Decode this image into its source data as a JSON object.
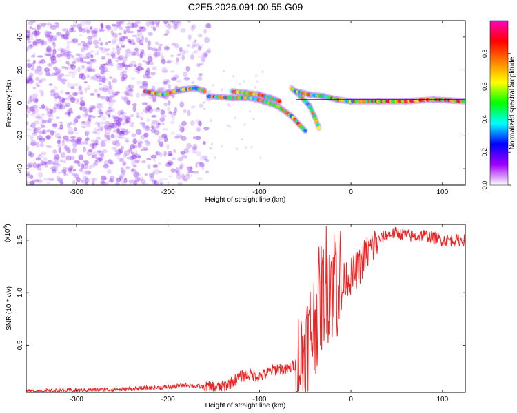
{
  "figure_title": "C2E5.2026.091.00.55.G09",
  "colorbar_label": "Normalized spectral amplitude",
  "colorbar_ticks": [
    "0.0",
    "0.2",
    "0.4",
    "0.6",
    "0.8"
  ],
  "colorbar_stops": [
    "#ffffff",
    "#a000ff",
    "#0000ff",
    "#00ffff",
    "#00ff00",
    "#ffff00",
    "#ff8000",
    "#ff0000",
    "#ff00c0"
  ],
  "chart_data": [
    {
      "type": "heatmap",
      "xlabel": "Height of straight line (km)",
      "ylabel": "Frequency (Hz)",
      "xlim": [
        -355,
        125
      ],
      "ylim": [
        -50,
        50
      ],
      "xticks": [
        -300,
        -200,
        -100,
        0,
        100
      ],
      "yticks": [
        -40,
        -20,
        0,
        20,
        40
      ],
      "xtick_labels": [
        "-300",
        "-200",
        "-100",
        "0",
        "100"
      ],
      "ytick_labels": [
        "-40",
        "-20",
        "0",
        "20",
        "40"
      ],
      "noise_region_x": [
        -355,
        -155
      ],
      "signal_tracks": [
        {
          "x": [
            -225,
            -205,
            -185,
            -170,
            -160
          ],
          "y": [
            7,
            5,
            8,
            9,
            7
          ]
        },
        {
          "x": [
            -155,
            -130,
            -110,
            -95,
            -80,
            -65,
            -50
          ],
          "y": [
            4,
            3,
            3,
            1,
            -2,
            -8,
            -17
          ]
        },
        {
          "x": [
            -130,
            -115,
            -100,
            -88,
            -78
          ],
          "y": [
            7,
            6,
            5,
            3,
            1
          ]
        },
        {
          "x": [
            -65,
            -55,
            -45,
            -40,
            -35
          ],
          "y": [
            9,
            4,
            -2,
            -8,
            -15
          ]
        },
        {
          "x": [
            -60,
            -45,
            -30,
            -15,
            0,
            30,
            60,
            90,
            125
          ],
          "y": [
            7,
            5,
            4,
            2,
            1,
            1,
            1,
            2,
            1
          ]
        }
      ]
    },
    {
      "type": "line",
      "xlabel": "Height of straight line (km)",
      "ylabel": "SNR (10 * v/v)",
      "ylabel_scale": "(x10",
      "ylabel_scale_exp": "4",
      "xlim": [
        -355,
        125
      ],
      "ylim": [
        0.05,
        1.65
      ],
      "xticks": [
        -300,
        -200,
        -100,
        0,
        100
      ],
      "xtick_labels": [
        "-300",
        "-200",
        "-100",
        "0",
        "100"
      ],
      "yticks": [
        0.5,
        1.0,
        1.5
      ],
      "ytick_labels": [
        "0.5",
        "1.0",
        "1.5"
      ],
      "color": "#ee2222",
      "series": [
        {
          "x": [
            -355,
            -300,
            -250,
            -200,
            -180,
            -160,
            -140,
            -130,
            -120,
            -110,
            -100,
            -90,
            -80,
            -70,
            -60,
            -55,
            -50,
            -45,
            -40,
            -35,
            -30,
            -27,
            -25,
            -22,
            -20,
            -17,
            -15,
            -12,
            -10,
            -8,
            -5,
            0,
            5,
            10,
            15,
            20,
            25,
            30,
            40,
            50,
            60,
            70,
            80,
            90,
            100,
            110,
            125
          ],
          "y": [
            0.06,
            0.07,
            0.08,
            0.1,
            0.12,
            0.1,
            0.1,
            0.15,
            0.2,
            0.22,
            0.2,
            0.24,
            0.28,
            0.26,
            0.32,
            0.35,
            0.45,
            0.6,
            0.7,
            0.9,
            1.0,
            1.15,
            1.05,
            1.25,
            1.0,
            1.3,
            1.05,
            1.2,
            0.95,
            1.1,
            1.15,
            1.15,
            1.2,
            1.25,
            1.35,
            1.4,
            1.45,
            1.5,
            1.55,
            1.57,
            1.55,
            1.53,
            1.55,
            1.52,
            1.5,
            1.5,
            1.5
          ]
        }
      ]
    }
  ]
}
